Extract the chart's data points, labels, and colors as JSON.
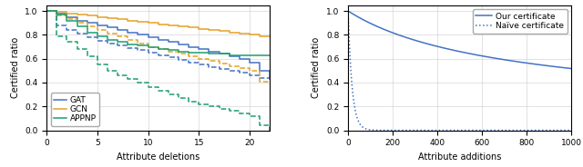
{
  "left_xlabel": "Attribute deletions",
  "left_ylabel": "Certified ratio",
  "left_xlim": [
    0,
    22
  ],
  "left_ylim": [
    0.0,
    1.05
  ],
  "left_yticks": [
    0.0,
    0.2,
    0.4,
    0.6,
    0.8,
    1.0
  ],
  "left_xticks": [
    0,
    5,
    10,
    15,
    20
  ],
  "right_xlabel": "Attribute additions",
  "right_ylabel": "Certified ratio",
  "right_xlim": [
    0,
    1000
  ],
  "right_ylim": [
    0.0,
    1.05
  ],
  "right_yticks": [
    0.0,
    0.2,
    0.4,
    0.6,
    0.8,
    1.0
  ],
  "right_xticks": [
    0,
    200,
    400,
    600,
    800,
    1000
  ],
  "gat_color": "#4472c4",
  "gcn_color": "#e5a225",
  "appnp_color": "#1e9e6e",
  "cert_color": "#4472c4",
  "legend_right_solid": "Our certificate",
  "legend_right_dotted": "Naïve certificate",
  "gat_solid": [
    1.0,
    0.98,
    0.95,
    0.92,
    0.9,
    0.88,
    0.86,
    0.84,
    0.82,
    0.8,
    0.78,
    0.76,
    0.74,
    0.72,
    0.7,
    0.68,
    0.66,
    0.64,
    0.62,
    0.6,
    0.57,
    0.5,
    0.43
  ],
  "gat_dashed": [
    1.0,
    0.88,
    0.84,
    0.81,
    0.78,
    0.75,
    0.73,
    0.71,
    0.69,
    0.67,
    0.65,
    0.63,
    0.61,
    0.59,
    0.57,
    0.55,
    0.53,
    0.51,
    0.5,
    0.48,
    0.46,
    0.44,
    0.43
  ],
  "gcn_solid": [
    1.0,
    0.99,
    0.98,
    0.97,
    0.96,
    0.95,
    0.94,
    0.93,
    0.92,
    0.91,
    0.9,
    0.89,
    0.88,
    0.87,
    0.86,
    0.85,
    0.84,
    0.83,
    0.82,
    0.81,
    0.8,
    0.79,
    0.79
  ],
  "gcn_dashed": [
    1.0,
    0.96,
    0.93,
    0.9,
    0.87,
    0.84,
    0.81,
    0.79,
    0.76,
    0.73,
    0.7,
    0.68,
    0.66,
    0.64,
    0.62,
    0.6,
    0.58,
    0.56,
    0.54,
    0.52,
    0.5,
    0.41,
    0.41
  ],
  "appnp_solid": [
    1.0,
    0.97,
    0.92,
    0.87,
    0.82,
    0.79,
    0.76,
    0.74,
    0.72,
    0.71,
    0.7,
    0.68,
    0.67,
    0.66,
    0.65,
    0.65,
    0.64,
    0.64,
    0.63,
    0.63,
    0.63,
    0.63,
    0.63
  ],
  "appnp_dashed": [
    1.0,
    0.79,
    0.74,
    0.68,
    0.62,
    0.55,
    0.5,
    0.46,
    0.43,
    0.4,
    0.36,
    0.33,
    0.3,
    0.27,
    0.24,
    0.22,
    0.2,
    0.18,
    0.16,
    0.14,
    0.12,
    0.04,
    0.0
  ]
}
